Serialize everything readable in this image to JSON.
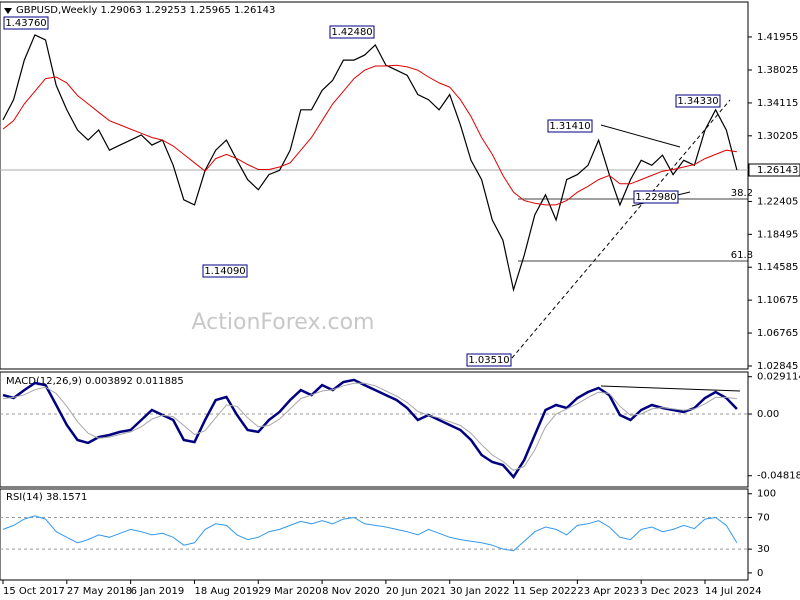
{
  "chart_data": [
    {
      "type": "line",
      "title": "GBPUSD,Weekly  1.29063 1.29253 1.25965 1.26143",
      "ylim": [
        1.0249,
        1.4611
      ],
      "yticks": [
        1.41955,
        1.38025,
        1.34115,
        1.30205,
        1.22405,
        1.18495,
        1.14585,
        1.10675,
        1.06765,
        1.02845
      ],
      "last_price": 1.26143,
      "watermark": "ActionForex.com",
      "annotations": [
        "1.43760",
        "1.42480",
        "1.14090",
        "1.31410",
        "1.34330",
        "1.22980",
        "1.03510"
      ],
      "fib_levels": [
        38.2,
        61.8
      ],
      "series": [
        {
          "color": "#000000",
          "values": [
            1.321,
            1.345,
            1.392,
            1.422,
            1.416,
            1.362,
            1.333,
            1.309,
            1.297,
            1.309,
            1.285,
            1.291,
            1.297,
            1.303,
            1.291,
            1.297,
            1.267,
            1.226,
            1.22,
            1.261,
            1.285,
            1.297,
            1.273,
            1.25,
            1.238,
            1.256,
            1.261,
            1.285,
            1.333,
            1.333,
            1.356,
            1.368,
            1.392,
            1.392,
            1.398,
            1.41,
            1.386,
            1.38,
            1.374,
            1.351,
            1.345,
            1.333,
            1.351,
            1.315,
            1.273,
            1.25,
            1.202,
            1.178,
            1.119,
            1.16,
            1.208,
            1.232,
            1.202,
            1.25,
            1.256,
            1.267,
            1.297,
            1.256,
            1.22,
            1.25,
            1.273,
            1.267,
            1.279,
            1.256,
            1.273,
            1.267,
            1.309,
            1.333,
            1.309,
            1.26143
          ]
        },
        {
          "color": "#e00000",
          "values": [
            1.31,
            1.32,
            1.34,
            1.355,
            1.37,
            1.372,
            1.365,
            1.35,
            1.34,
            1.33,
            1.32,
            1.315,
            1.31,
            1.305,
            1.3,
            1.297,
            1.29,
            1.28,
            1.27,
            1.26,
            1.275,
            1.28,
            1.275,
            1.268,
            1.262,
            1.262,
            1.265,
            1.27,
            1.285,
            1.3,
            1.32,
            1.34,
            1.355,
            1.37,
            1.38,
            1.385,
            1.385,
            1.386,
            1.384,
            1.38,
            1.372,
            1.365,
            1.36,
            1.345,
            1.325,
            1.3,
            1.28,
            1.255,
            1.235,
            1.225,
            1.222,
            1.22,
            1.22,
            1.225,
            1.235,
            1.242,
            1.25,
            1.255,
            1.245,
            1.245,
            1.25,
            1.255,
            1.26,
            1.262,
            1.265,
            1.268,
            1.275,
            1.28,
            1.285,
            1.283
          ]
        }
      ]
    },
    {
      "type": "line",
      "title": "MACD(12,26,9) 0.003892 0.011885",
      "ylim": [
        -0.057,
        0.0328
      ],
      "yticks": [
        0.029114,
        {
          "value": 0,
          "label": "0.00"
        },
        -0.048189
      ],
      "levels": [
        0
      ],
      "series": [
        {
          "color": "#000080",
          "values": [
            0.0148,
            0.0125,
            0.0187,
            0.0242,
            0.0226,
            0.007,
            -0.0086,
            -0.0203,
            -0.0226,
            -0.018,
            -0.0164,
            -0.014,
            -0.0125,
            -0.0047,
            0.0031,
            -0.0008,
            -0.0047,
            -0.0203,
            -0.0219,
            -0.0047,
            0.0109,
            0.0133,
            -0.0008,
            -0.0125,
            -0.014,
            -0.0047,
            0.0016,
            0.0109,
            0.0187,
            0.0148,
            0.0226,
            0.0187,
            0.025,
            0.0266,
            0.0226,
            0.0187,
            0.0148,
            0.0109,
            0.0047,
            -0.0047,
            -0.0008,
            -0.0047,
            -0.0086,
            -0.0125,
            -0.0203,
            -0.032,
            -0.0375,
            -0.0398,
            -0.0492,
            -0.0359,
            -0.0164,
            0.0031,
            0.007,
            0.0047,
            0.0125,
            0.0172,
            0.0203,
            0.0148,
            -0.0008,
            -0.0047,
            0.0031,
            0.007,
            0.0047,
            0.0031,
            0.0016,
            0.0047,
            0.0125,
            0.0172,
            0.0125,
            0.003892
          ]
        },
        {
          "color": "#a8a8a8",
          "values": [
            0.012,
            0.013,
            0.015,
            0.019,
            0.021,
            0.016,
            0.006,
            -0.006,
            -0.015,
            -0.019,
            -0.018,
            -0.016,
            -0.014,
            -0.01,
            -0.004,
            -0.001,
            -0.002,
            -0.009,
            -0.016,
            -0.013,
            -0.003,
            0.007,
            0.006,
            -0.003,
            -0.01,
            -0.009,
            -0.004,
            0.004,
            0.012,
            0.015,
            0.018,
            0.019,
            0.022,
            0.024,
            0.024,
            0.022,
            0.018,
            0.014,
            0.009,
            0.002,
            -0.001,
            -0.003,
            -0.006,
            -0.009,
            -0.015,
            -0.024,
            -0.032,
            -0.037,
            -0.044,
            -0.041,
            -0.028,
            -0.01,
            0.0,
            0.004,
            0.008,
            0.013,
            0.017,
            0.016,
            0.006,
            -0.001,
            0.0,
            0.004,
            0.005,
            0.004,
            0.003,
            0.004,
            0.008,
            0.013,
            0.013,
            0.011885
          ]
        }
      ]
    },
    {
      "type": "line",
      "title": "RSI(14) 38.1571",
      "ylim": [
        -9,
        106
      ],
      "yticks": [
        100,
        70,
        30,
        0
      ],
      "levels": [
        70,
        30
      ],
      "categories": [
        "15 Oct 2017",
        null,
        null,
        null,
        null,
        null,
        "27 May 2018",
        null,
        null,
        null,
        null,
        null,
        "6 Jan 2019",
        null,
        null,
        null,
        null,
        null,
        "18 Aug 2019",
        null,
        null,
        null,
        null,
        null,
        "29 Mar 2020",
        null,
        null,
        null,
        null,
        null,
        "8 Nov 2020",
        null,
        null,
        null,
        null,
        null,
        "20 Jun 2021",
        null,
        null,
        null,
        null,
        null,
        "30 Jan 2022",
        null,
        null,
        null,
        null,
        null,
        "11 Sep 2022",
        null,
        null,
        null,
        null,
        null,
        "23 Apr 2023",
        null,
        null,
        null,
        null,
        null,
        "3 Dec 2023",
        null,
        null,
        null,
        null,
        null,
        "14 Jul 2024",
        null,
        null,
        null
      ],
      "series": [
        {
          "color": "#3399ee",
          "values": [
            55,
            60,
            68,
            72,
            68,
            52,
            45,
            38,
            42,
            48,
            45,
            50,
            55,
            52,
            48,
            50,
            45,
            35,
            38,
            55,
            62,
            60,
            48,
            42,
            45,
            52,
            55,
            60,
            65,
            62,
            66,
            62,
            68,
            70,
            62,
            60,
            58,
            55,
            52,
            48,
            55,
            50,
            45,
            42,
            40,
            38,
            35,
            30,
            28,
            40,
            52,
            58,
            55,
            48,
            60,
            62,
            66,
            58,
            45,
            42,
            55,
            58,
            52,
            55,
            60,
            56,
            68,
            70,
            60,
            38.1571
          ]
        }
      ]
    }
  ]
}
